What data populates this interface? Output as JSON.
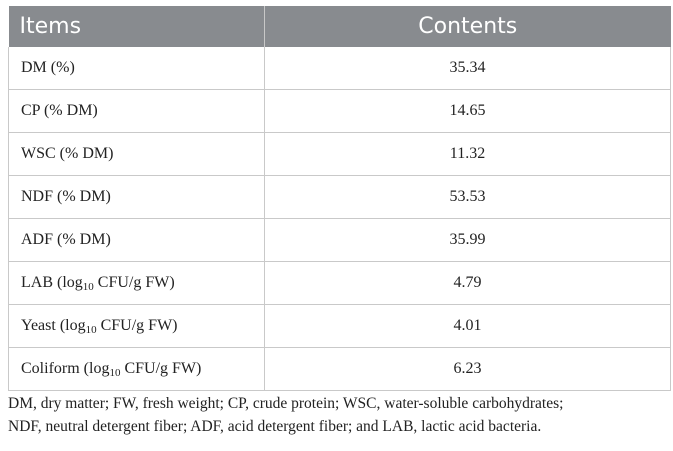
{
  "table": {
    "headers": {
      "items": "Items",
      "contents": "Contents"
    },
    "rows": [
      {
        "pre": "DM (%)",
        "sub": "",
        "post": "",
        "value": "35.34"
      },
      {
        "pre": "CP (% DM)",
        "sub": "",
        "post": "",
        "value": "14.65"
      },
      {
        "pre": "WSC (% DM)",
        "sub": "",
        "post": "",
        "value": "11.32"
      },
      {
        "pre": "NDF (% DM)",
        "sub": "",
        "post": "",
        "value": "53.53"
      },
      {
        "pre": "ADF (% DM)",
        "sub": "",
        "post": "",
        "value": "35.99"
      },
      {
        "pre": "LAB (log",
        "sub": "10",
        "post": " CFU/g FW)",
        "value": "4.79"
      },
      {
        "pre": "Yeast (log",
        "sub": "10",
        "post": " CFU/g FW)",
        "value": "4.01"
      },
      {
        "pre": "Coliform (log",
        "sub": "10",
        "post": " CFU/g FW)",
        "value": "6.23"
      }
    ]
  },
  "footnote": {
    "line1": "DM, dry matter; FW, fresh weight; CP, crude protein; WSC, water-soluble carbohydrates;",
    "line2": "NDF, neutral detergent fiber; ADF, acid detergent fiber; and LAB, lactic acid bacteria."
  }
}
